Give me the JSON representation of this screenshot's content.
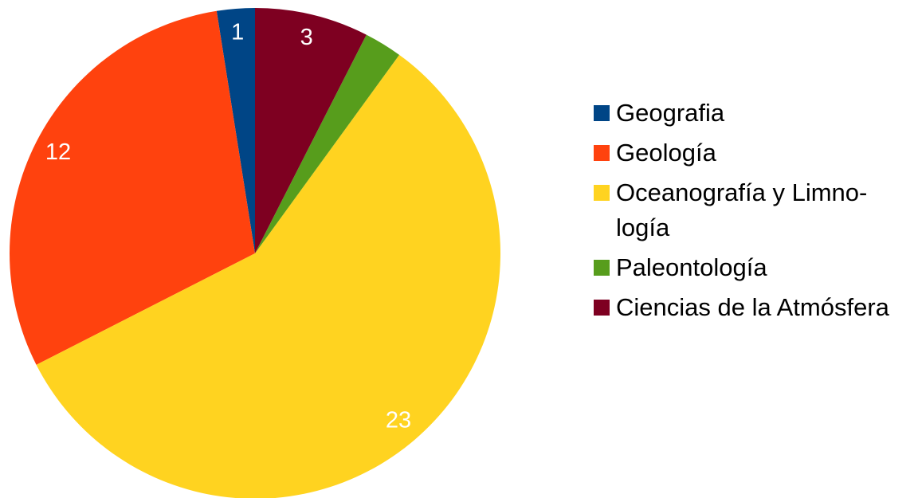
{
  "chart_data": {
    "type": "pie",
    "categories": [
      "Geografia",
      "Geología",
      "Oceanografía y Limno­logía",
      "Paleontología",
      "Ciencias de la Atmós­fera"
    ],
    "values": [
      1,
      12,
      23,
      1,
      3
    ],
    "value_labels": [
      "1",
      "12",
      "23",
      null,
      "3"
    ],
    "colors": [
      "#004586",
      "#ff420e",
      "#ffd320",
      "#579d1c",
      "#7e0021"
    ],
    "legend": "right"
  }
}
